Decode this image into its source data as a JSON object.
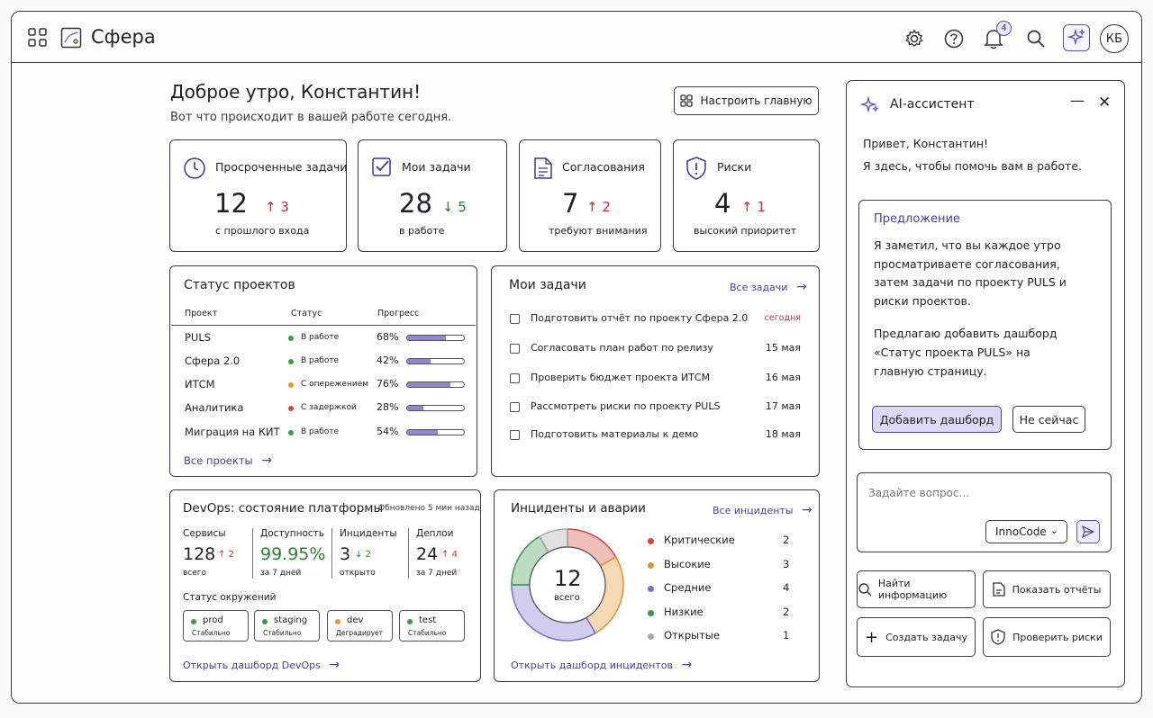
{
  "app": {
    "title": "Сфера",
    "notifications": "4",
    "avatar": "КБ"
  },
  "greeting": {
    "title": "Доброе утро, Константин!",
    "subtitle": "Вот что происходит в вашей работе сегодня.",
    "customize": "Настроить главную"
  },
  "kpis": [
    {
      "title": "Просроченные задачи",
      "value": "12",
      "delta": "3",
      "dir": "up",
      "caption": "с прошлого входа"
    },
    {
      "title": "Мои задачи",
      "value": "28",
      "delta": "5",
      "dir": "down",
      "caption": "в работе"
    },
    {
      "title": "Согласования",
      "value": "7",
      "delta": "2",
      "dir": "up",
      "caption": "требуют внимания"
    },
    {
      "title": "Риски",
      "value": "4",
      "delta": "1",
      "dir": "up",
      "caption": "высокий приоритет"
    }
  ],
  "projects": {
    "title": "Статус проектов",
    "headers": [
      "Проект",
      "Статус",
      "Прогресс"
    ],
    "rows": [
      {
        "name": "PULS",
        "status": "В работе",
        "color": "#3c9a4c",
        "pct": "68%",
        "value": 68
      },
      {
        "name": "Сфера 2.0",
        "status": "В работе",
        "color": "#3c9a4c",
        "pct": "42%",
        "value": 42
      },
      {
        "name": "ИТСМ",
        "status": "С опережением",
        "color": "#e49a2a",
        "pct": "76%",
        "value": 76
      },
      {
        "name": "Аналитика",
        "status": "С задержкой",
        "color": "#d9443a",
        "pct": "28%",
        "value": 28
      },
      {
        "name": "Миграция на КИТ",
        "status": "В работе",
        "color": "#3c9a4c",
        "pct": "54%",
        "value": 54
      }
    ],
    "link": "Все проекты"
  },
  "tasks": {
    "title": "Мои задачи",
    "link": "Все задачи",
    "items": [
      {
        "text": "Подготовить отчёт по проекту Сфера 2.0",
        "date": "сегодня"
      },
      {
        "text": "Согласовать план работ по релизу",
        "date": "15 мая"
      },
      {
        "text": "Проверить бюджет проекта ИТСМ",
        "date": "16 мая"
      },
      {
        "text": "Рассмотреть риски по проекту PULS",
        "date": "17 мая"
      },
      {
        "text": "Подготовить материалы к демо",
        "date": "18 мая"
      }
    ]
  },
  "devops": {
    "title": "DevOps: состояние платформы",
    "updated": "Обновлено 5 мин назад",
    "stats": [
      {
        "label": "Сервисы",
        "value": "128",
        "delta": "2",
        "dir": "up",
        "caption": "всего"
      },
      {
        "label": "Доступность",
        "value": "99.95%",
        "delta": "",
        "dir": "",
        "caption": "за 7 дней"
      },
      {
        "label": "Инциденты",
        "value": "3",
        "delta": "2",
        "dir": "down",
        "caption": "открыто"
      },
      {
        "label": "Деплои",
        "value": "24",
        "delta": "4",
        "dir": "up",
        "caption": "за 7 дней"
      }
    ],
    "env_title": "Статус окружений",
    "envs": [
      {
        "name": "prod",
        "state": "Стабильно",
        "color": "#3c9a4c"
      },
      {
        "name": "staging",
        "state": "Стабильно",
        "color": "#3c9a4c"
      },
      {
        "name": "dev",
        "state": "Деградирует",
        "color": "#e49a2a"
      },
      {
        "name": "test",
        "state": "Стабильно",
        "color": "#3c9a4c"
      }
    ],
    "link": "Открыть дашборд DevOps"
  },
  "incidents": {
    "title": "Инциденты и аварии",
    "link": "Все инциденты",
    "total": "12",
    "total_label": "всего",
    "items": [
      {
        "label": "Критические",
        "count": "2",
        "value": 2,
        "color": "#d9443a"
      },
      {
        "label": "Высокие",
        "count": "3",
        "value": 3,
        "color": "#e8902c"
      },
      {
        "label": "Средние",
        "count": "4",
        "value": 4,
        "color": "#7b6fc8"
      },
      {
        "label": "Низкие",
        "count": "2",
        "value": 2,
        "color": "#3c9a4c"
      },
      {
        "label": "Открытые",
        "count": "1",
        "value": 1,
        "color": "#a9a9a9"
      }
    ],
    "footer": "Открыть дашборд инцидентов"
  },
  "assistant": {
    "title": "AI-ассистент",
    "hello": "Привет, Константин!",
    "intro": "Я здесь, чтобы помочь вам в работе.",
    "suggestion_title": "Предложение",
    "suggestion_lines": [
      "Я заметил, что вы каждое утро",
      "просматриваете согласования,",
      "затем задачи по проекту PULS и",
      "риски проектов."
    ],
    "proposal_lines": [
      "Предлагаю добавить дашборд",
      "«Статус проекта PULS» на",
      "главную страницу."
    ],
    "accept": "Добавить дашборд",
    "decline": "Не сейчас",
    "placeholder": "Задайте вопрос...",
    "model": "InnoCode",
    "actions": [
      "Найти информацию",
      "Показать отчёты",
      "Создать задачу",
      "Проверить риски"
    ]
  }
}
